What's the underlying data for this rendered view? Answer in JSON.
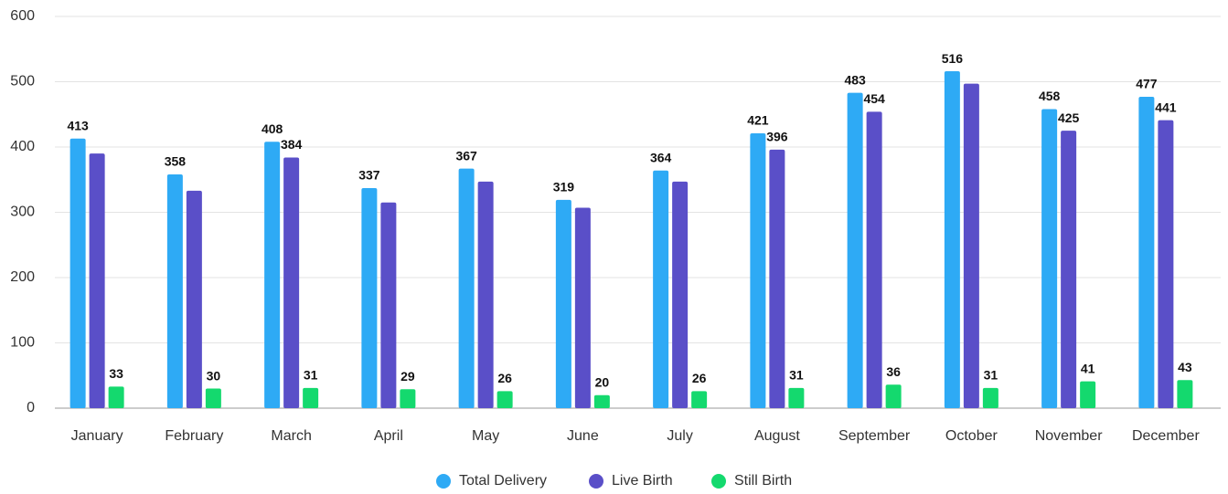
{
  "chart_data": {
    "type": "bar",
    "categories": [
      "January",
      "February",
      "March",
      "April",
      "May",
      "June",
      "July",
      "August",
      "September",
      "October",
      "November",
      "December"
    ],
    "series": [
      {
        "name": "Total Delivery",
        "color": "#2eaaf5",
        "values": [
          413,
          358,
          408,
          337,
          367,
          319,
          364,
          421,
          483,
          516,
          458,
          477
        ]
      },
      {
        "name": "Live Birth",
        "color": "#5a4fc8",
        "values": [
          390,
          333,
          384,
          315,
          347,
          307,
          347,
          396,
          454,
          497,
          425,
          441
        ],
        "value_labels": [
          null,
          null,
          "384",
          null,
          null,
          null,
          null,
          "396",
          "454",
          null,
          "425",
          "441"
        ]
      },
      {
        "name": "Still Birth",
        "color": "#14d96e",
        "values": [
          33,
          30,
          31,
          29,
          26,
          20,
          26,
          31,
          36,
          31,
          41,
          43
        ]
      }
    ],
    "ylim": [
      0,
      600
    ],
    "yticks": [
      0,
      100,
      200,
      300,
      400,
      500,
      600
    ],
    "grid": true,
    "legend": "bottom"
  }
}
